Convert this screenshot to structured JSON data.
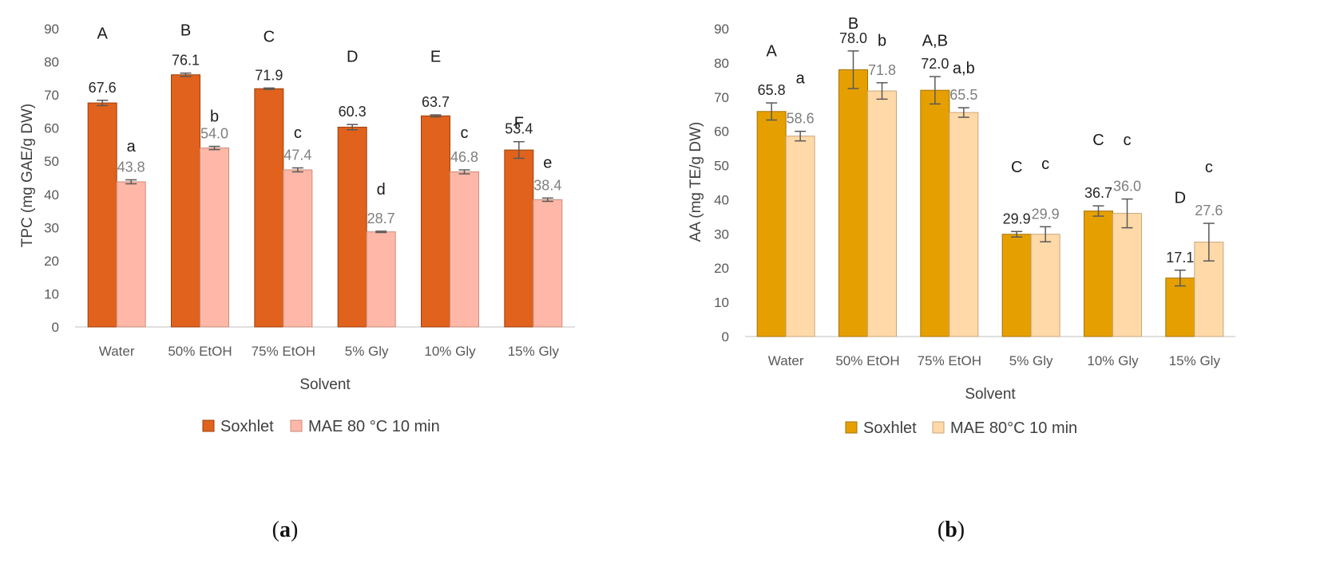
{
  "chart_data": [
    {
      "type": "bar",
      "panel_label": "a",
      "xlabel": "Solvent",
      "ylabel": "TPC (mg GAE/g DW)",
      "ylim": [
        0,
        90
      ],
      "yticks": [
        0,
        10,
        20,
        30,
        40,
        50,
        60,
        70,
        80,
        90
      ],
      "categories": [
        "Water",
        "50% EtOH",
        "75% EtOH",
        "5% Gly",
        "10% Gly",
        "15% Gly"
      ],
      "series": [
        {
          "name": "Soxhlet",
          "color": "#e0621c",
          "values": [
            67.6,
            76.1,
            71.9,
            60.3,
            63.7,
            53.4
          ],
          "labels": [
            "67.6",
            "76.1",
            "71.9",
            "60.3",
            "63.7",
            "53.4"
          ],
          "errors": [
            0.8,
            0.5,
            0.2,
            0.8,
            0.3,
            2.5
          ],
          "letters": [
            "A",
            "B",
            "C",
            "D",
            "E",
            "F"
          ],
          "letter_y": [
            87,
            88,
            86,
            80,
            80,
            60
          ]
        },
        {
          "name": "MAE 80 °C 10 min",
          "color": "#ffb8a7",
          "values": [
            43.8,
            54.0,
            47.4,
            28.7,
            46.8,
            38.4
          ],
          "labels": [
            "43.8",
            "54.0",
            "47.4",
            "28.7",
            "46.8",
            "38.4"
          ],
          "errors": [
            0.6,
            0.5,
            0.6,
            0.2,
            0.6,
            0.5
          ],
          "letters": [
            "a",
            "b",
            "c",
            "d",
            "c",
            "e"
          ],
          "letter_y": [
            53,
            62,
            57,
            40,
            57,
            48
          ]
        }
      ]
    },
    {
      "type": "bar",
      "panel_label": "b",
      "xlabel": "Solvent",
      "ylabel": "AA (mg TE/g DW)",
      "ylim": [
        0,
        90
      ],
      "yticks": [
        0,
        10,
        20,
        30,
        40,
        50,
        60,
        70,
        80,
        90
      ],
      "categories": [
        "Water",
        "50% EtOH",
        "75% EtOH",
        "5% Gly",
        "10% Gly",
        "15% Gly"
      ],
      "series": [
        {
          "name": "Soxhlet",
          "color": "#e5a000",
          "values": [
            65.8,
            78.0,
            72.0,
            29.9,
            36.7,
            17.1
          ],
          "labels": [
            "65.8",
            "78.0",
            "72.0",
            "29.9",
            "36.7",
            "17.1"
          ],
          "errors": [
            2.5,
            5.5,
            4.0,
            0.8,
            1.5,
            2.3
          ],
          "letters": [
            "A",
            "B",
            "A,B",
            "C",
            "C",
            "D"
          ],
          "letter_y": [
            82,
            90,
            85,
            48,
            56,
            39
          ]
        },
        {
          "name": "MAE 80°C 10 min",
          "color": "#ffd9a8",
          "values": [
            58.6,
            71.8,
            65.5,
            29.9,
            36.0,
            27.6
          ],
          "labels": [
            "58.6",
            "71.8",
            "65.5",
            "29.9",
            "36.0",
            "27.6"
          ],
          "errors": [
            1.4,
            2.4,
            1.4,
            2.2,
            4.2,
            5.5
          ],
          "letters": [
            "a",
            "b",
            "a,b",
            "c",
            "c",
            "c"
          ],
          "letter_y": [
            74,
            85,
            77,
            49,
            56,
            48
          ]
        }
      ]
    }
  ]
}
